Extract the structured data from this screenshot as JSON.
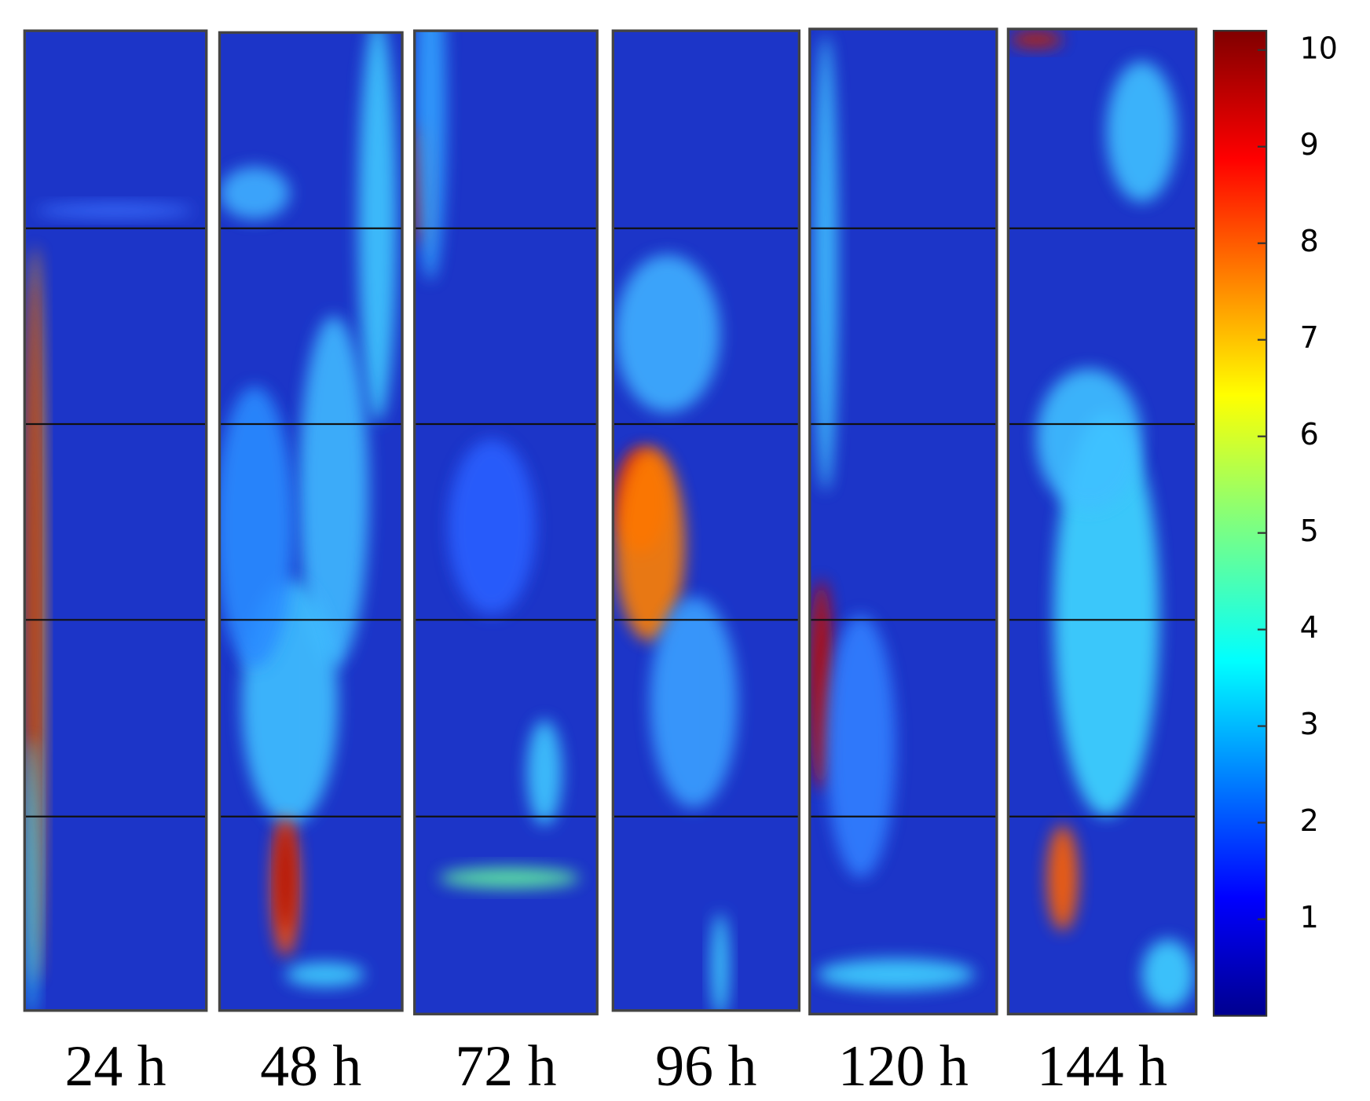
{
  "panels": [
    {
      "label": "24 h"
    },
    {
      "label": "48 h"
    },
    {
      "label": "72 h"
    },
    {
      "label": "96 h"
    },
    {
      "label": "120 h"
    },
    {
      "label": "144 h"
    }
  ],
  "colorbar": {
    "range": [
      0,
      10.2
    ],
    "ticks": [
      1,
      2,
      3,
      4,
      5,
      6,
      7,
      8,
      9,
      10
    ]
  }
}
